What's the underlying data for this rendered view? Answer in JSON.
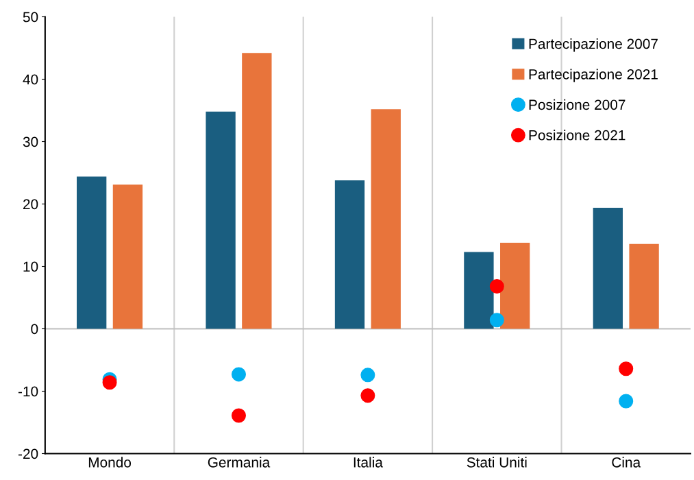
{
  "chart_data": {
    "type": "bar",
    "categories": [
      "Mondo",
      "Germania",
      "Italia",
      "Stati Uniti",
      "Cina"
    ],
    "series": [
      {
        "name": "Partecipazione 2007",
        "color": "#1a5e80",
        "values": [
          24.4,
          34.8,
          23.8,
          12.3,
          19.4
        ]
      },
      {
        "name": "Partecipazione 2021",
        "color": "#e8743b",
        "values": [
          23.1,
          44.2,
          35.2,
          13.8,
          13.6
        ]
      },
      {
        "name": "Posizione 2007",
        "type": "scatter",
        "color": "#00b0f0",
        "x": [
          "Mondo",
          "Germania",
          "Italia",
          "Stati Uniti",
          "Cina"
        ],
        "values": [
          -8.1,
          -7.3,
          -7.4,
          1.4,
          -11.6
        ]
      },
      {
        "name": "Posizione 2021",
        "type": "scatter",
        "color": "#ff0000",
        "x": [
          "Mondo",
          "Germania",
          "Italia",
          "Stati Uniti",
          "Cina"
        ],
        "values": [
          -8.6,
          -13.9,
          -10.7,
          6.8,
          -6.4
        ]
      }
    ],
    "ylim": [
      -20,
      50
    ],
    "yticks": [
      -20,
      -10,
      0,
      10,
      20,
      30,
      40,
      50
    ],
    "grid": "x",
    "legend": "top right",
    "marker": "circle"
  }
}
